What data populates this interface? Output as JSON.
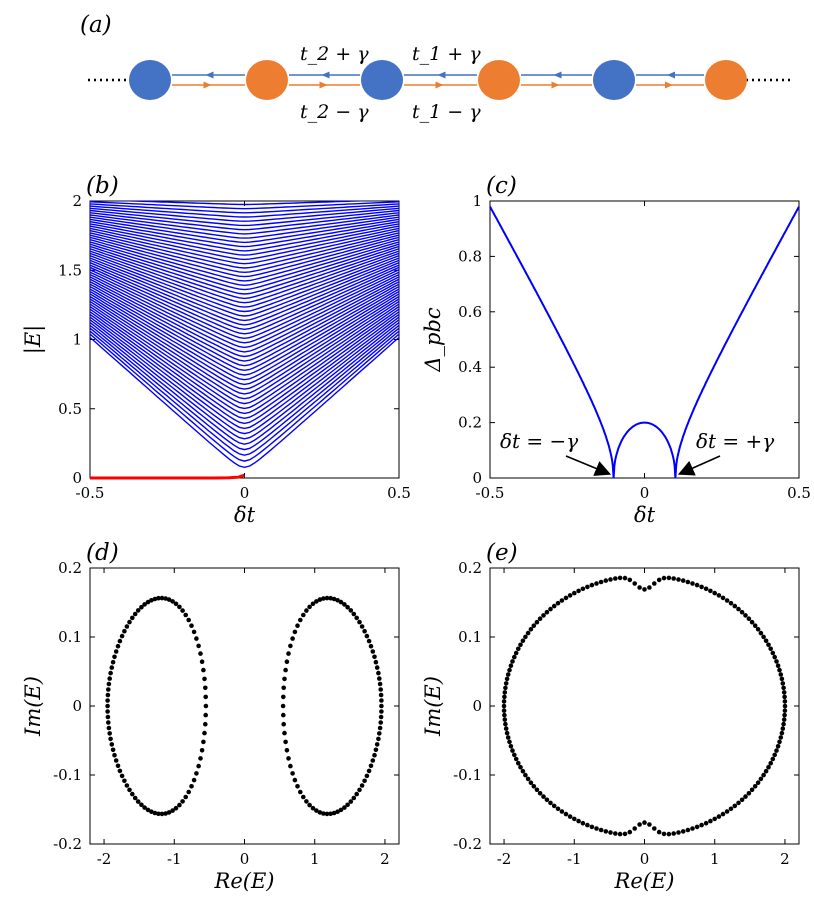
{
  "colors": {
    "blue_site": "#4472C4",
    "orange_site": "#ED7D31",
    "level_lines": "#0000FF",
    "zero_mode": "#FF0000",
    "gap_curve": "#0000FF",
    "points": "#000000"
  },
  "panel_a": {
    "label": "(a)",
    "top_labels": [
      "t_2 + γ",
      "t_1 + γ"
    ],
    "bottom_labels": [
      "t_2 − γ",
      "t_1 − γ"
    ],
    "sites": [
      "blue",
      "orange",
      "blue",
      "orange",
      "blue",
      "orange"
    ]
  },
  "chart_data": [
    {
      "id": "b",
      "panel_label": "(b)",
      "type": "line",
      "xlabel": "δt",
      "ylabel": "|E|",
      "xlim": [
        -0.5,
        0.5
      ],
      "ylim": [
        0,
        2
      ],
      "xticks": [
        "-0.5",
        "0",
        "0.5"
      ],
      "yticks": [
        "0",
        "0.5",
        "1",
        "1.5",
        "2"
      ],
      "grid": false,
      "legend": "none",
      "bulk_bands": {
        "n_levels": 60,
        "description_values": "|E| levels fanning from 1 at δt=-0.5 and δt=0.5 down to ≈0.05 at δt=0, up to 2"
      },
      "series": [
        {
          "x": [
            -0.5,
            -0.2,
            -0.1,
            -0.05,
            -0.02,
            0.0
          ],
          "y": [
            0,
            0,
            0.0,
            0.002,
            0.006,
            0.02
          ]
        }
      ]
    },
    {
      "id": "c",
      "panel_label": "(c)",
      "type": "line",
      "xlabel": "δt",
      "ylabel": "Δ_pbc",
      "xlim": [
        -0.5,
        0.5
      ],
      "ylim": [
        0,
        1
      ],
      "xticks": [
        "-0.5",
        "0",
        "0.5"
      ],
      "yticks": [
        "0",
        "0.2",
        "0.4",
        "0.6",
        "0.8",
        "1"
      ],
      "grid": false,
      "gamma": 0.1,
      "annotations": [
        {
          "text": "δt = −γ",
          "x": -0.1,
          "y": 0
        },
        {
          "text": "δt = +γ",
          "x": 0.1,
          "y": 0
        }
      ],
      "series": [
        {
          "x": [
            -0.5,
            -0.4,
            -0.3,
            -0.2,
            -0.15,
            -0.12,
            -0.1,
            -0.09,
            -0.07,
            -0.05,
            -0.03,
            0,
            0.03,
            0.05,
            0.07,
            0.09,
            0.1,
            0.12,
            0.15,
            0.2,
            0.3,
            0.4,
            0.5
          ],
          "y": [
            0.98,
            0.78,
            0.57,
            0.35,
            0.22,
            0.13,
            0.0,
            0.09,
            0.14,
            0.17,
            0.19,
            0.2,
            0.19,
            0.17,
            0.14,
            0.09,
            0.0,
            0.13,
            0.22,
            0.35,
            0.57,
            0.78,
            0.98
          ]
        }
      ]
    },
    {
      "id": "d",
      "panel_label": "(d)",
      "type": "scatter",
      "xlabel": "Re(E)",
      "ylabel": "Im(E)",
      "xlim": [
        -2.2,
        2.2
      ],
      "ylim": [
        -0.2,
        0.2
      ],
      "xticks": [
        "-2",
        "-1",
        "0",
        "1",
        "2"
      ],
      "yticks": [
        "-0.2",
        "-0.1",
        "0",
        "0.1",
        "0.2"
      ],
      "grid": false,
      "shape": "two closed loops",
      "series": [
        {
          "x": [
            -2.0,
            -1.9,
            -1.8,
            -1.6,
            -1.4,
            -1.2,
            -1.1,
            -1.0,
            -0.9,
            -0.8,
            -0.7,
            -0.62,
            -0.6,
            -0.6,
            -0.62,
            -0.7,
            -0.8,
            -0.9,
            -1.0,
            -1.1,
            -1.2,
            -1.4,
            -1.6,
            -1.8,
            -1.9
          ],
          "y": [
            0.0,
            0.07,
            0.1,
            0.135,
            0.15,
            0.152,
            0.15,
            0.145,
            0.13,
            0.1,
            0.05,
            0.01,
            0.0,
            -0.01,
            -0.02,
            -0.06,
            -0.1,
            -0.13,
            -0.145,
            -0.15,
            -0.152,
            -0.15,
            -0.135,
            -0.1,
            -0.07
          ]
        },
        {
          "x": [
            2.0,
            1.9,
            1.8,
            1.6,
            1.4,
            1.2,
            1.1,
            1.0,
            0.9,
            0.8,
            0.7,
            0.62,
            0.6,
            0.6,
            0.62,
            0.7,
            0.8,
            0.9,
            1.0,
            1.1,
            1.2,
            1.4,
            1.6,
            1.8,
            1.9
          ],
          "y": [
            0.0,
            0.07,
            0.1,
            0.135,
            0.15,
            0.152,
            0.15,
            0.145,
            0.13,
            0.1,
            0.05,
            0.01,
            0.0,
            -0.01,
            -0.02,
            -0.06,
            -0.1,
            -0.13,
            -0.145,
            -0.15,
            -0.152,
            -0.15,
            -0.135,
            -0.1,
            -0.07
          ]
        }
      ]
    },
    {
      "id": "e",
      "panel_label": "(e)",
      "type": "scatter",
      "xlabel": "Re(E)",
      "ylabel": "Im(E)",
      "xlim": [
        -2.2,
        2.2
      ],
      "ylim": [
        -0.2,
        0.2
      ],
      "xticks": [
        "-2",
        "-1",
        "0",
        "1",
        "2"
      ],
      "yticks": [
        "-0.2",
        "-0.1",
        "0",
        "0.1",
        "0.2"
      ],
      "grid": false,
      "shape": "single closed loop with dimples at Re(E)=0",
      "series": [
        {
          "x": [
            2.0,
            1.9,
            1.7,
            1.5,
            1.2,
            1.0,
            0.8,
            0.6,
            0.45,
            0.3,
            0.15,
            0.05,
            0.0,
            -0.05,
            -0.15,
            -0.3,
            -0.45,
            -0.6,
            -0.8,
            -1.0,
            -1.2,
            -1.5,
            -1.7,
            -1.9,
            -2.0
          ],
          "y": [
            0.0,
            0.09,
            0.13,
            0.155,
            0.175,
            0.183,
            0.187,
            0.189,
            0.189,
            0.187,
            0.18,
            0.172,
            0.17,
            0.172,
            0.18,
            0.187,
            0.189,
            0.189,
            0.187,
            0.183,
            0.175,
            0.155,
            0.13,
            0.09,
            0.0
          ]
        }
      ]
    }
  ]
}
